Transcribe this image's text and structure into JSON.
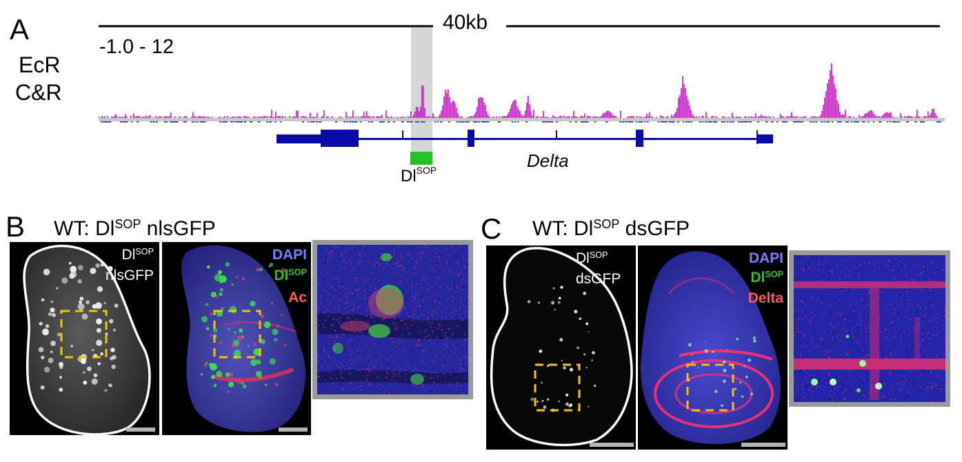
{
  "panelA": {
    "letter": "A",
    "scale_label": "40kb",
    "range_label": "-1.0 - 12",
    "track_label_line1": "EcR",
    "track_label_line2": "C&R",
    "enhancer_label": "Dl",
    "enhancer_sup": "SOP",
    "gene_label": "Delta",
    "colors": {
      "signal": "#e600e6",
      "gene": "#0a0aa8",
      "enhancer": "#22c422",
      "highlight": "#d6d6d6"
    }
  },
  "panelB": {
    "letter": "B",
    "title_pre": "WT: Dl",
    "title_sup": "SOP",
    "title_post": " nlsGFP",
    "img1_label_line1": "Dl",
    "img1_label_sup": "SOP",
    "img1_label_line2": "nlsGFP",
    "img2_channel1": "DAPI",
    "img2_channel2": "Dl",
    "img2_channel2_sup": "SOP",
    "img2_channel3": "Ac"
  },
  "panelC": {
    "letter": "C",
    "title_pre": "WT: Dl",
    "title_sup": "SOP",
    "title_post": " dsGFP",
    "img1_label_line1": "Dl",
    "img1_label_sup": "SOP",
    "img1_label_line2": "dsGFP",
    "img2_channel1": "DAPI",
    "img2_channel2": "Dl",
    "img2_channel2_sup": "SOP",
    "img2_channel3": "Delta"
  },
  "colors": {
    "dapi": "#7b7bff",
    "gfp": "#2fbf2f",
    "red": "#ff5a5a",
    "roi": "#f5c400",
    "frame": "#9a9a9a"
  }
}
